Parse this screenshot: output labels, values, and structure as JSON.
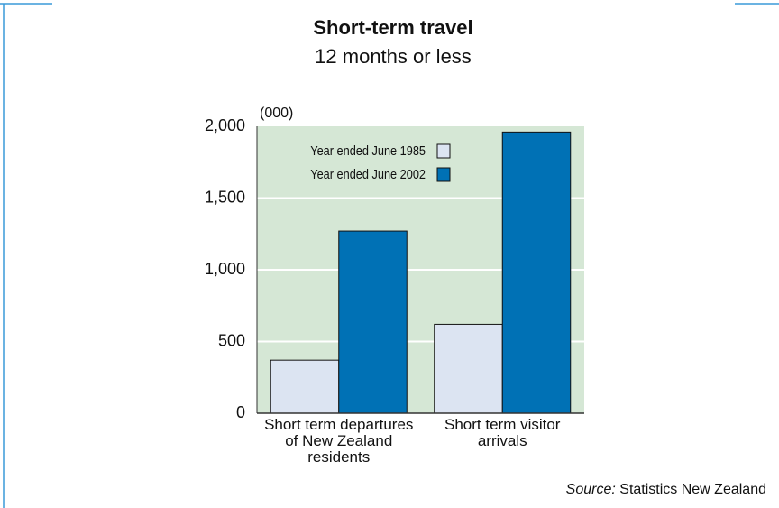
{
  "chart_data": {
    "type": "bar",
    "title": "Short-term travel",
    "subtitle": "12 months or less",
    "y_unit_label": "(000)",
    "categories": [
      "Short term departures of New Zealand residents",
      "Short term visitor arrivals"
    ],
    "series": [
      {
        "name": "Year ended June 1985",
        "color": "#dce4f2",
        "values": [
          370,
          620
        ]
      },
      {
        "name": "Year ended June 2002",
        "color": "#0071b5",
        "values": [
          1270,
          1960
        ]
      }
    ],
    "ylim": [
      0,
      2000
    ],
    "yticks": [
      0,
      500,
      {
        "value": 1000,
        "label": "1,000"
      },
      {
        "value": 1500,
        "label": "1,500"
      },
      {
        "value": 2000,
        "label": "2,000"
      }
    ],
    "grid": true,
    "plot_background": "#d5e7d5",
    "legend": "top-left",
    "source_label": "Source:",
    "source": "Statistics New Zealand"
  }
}
